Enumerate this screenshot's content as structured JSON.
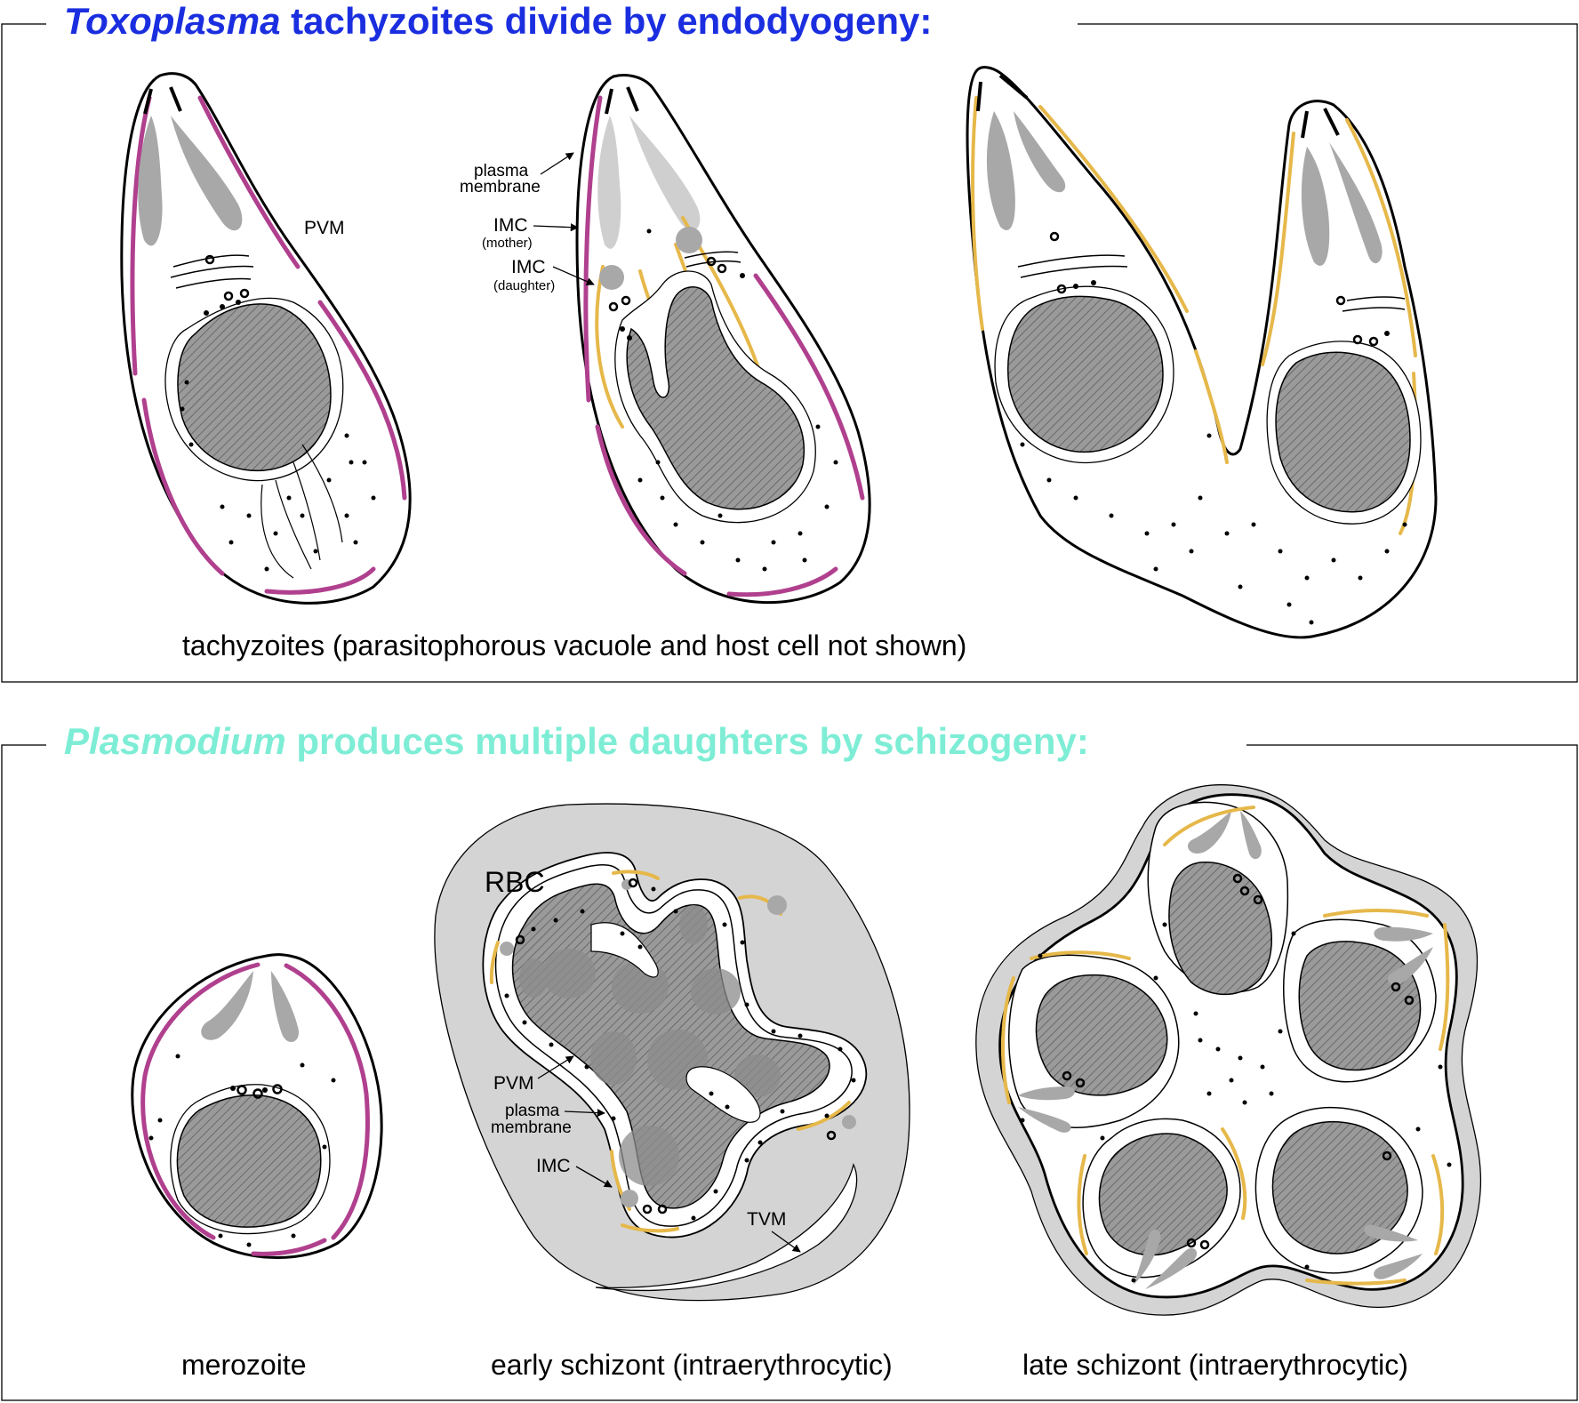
{
  "colors": {
    "toxo_heading": "#1a2ee0",
    "plasmo_heading": "#7eedd5",
    "imc_mother": "#b0408e",
    "imc_daughter": "#e6b84a",
    "rbc_fill": "#d4d4d4",
    "rhoptry": "#a8a8a8",
    "nucleus": "#9a9a9a"
  },
  "toxoplasma_panel": {
    "title_italic": "Toxoplasma",
    "title_rest": " tachyzoites divide by endodyogeny:",
    "caption": "tachyzoites (parasitophorous vacuole and host cell not shown)",
    "labels": {
      "pvm": "PVM",
      "plasma_membrane_1": "plasma",
      "plasma_membrane_2": "membrane",
      "imc_mother_1": "IMC",
      "imc_mother_2": "(mother)",
      "imc_daughter_1": "IMC",
      "imc_daughter_2": "(daughter)"
    }
  },
  "plasmodium_panel": {
    "title_italic": "Plasmodium",
    "title_rest": " produces multiple daughters by schizogeny:",
    "captions": {
      "merozoite": "merozoite",
      "early_schizont": "early schizont (intraerythrocytic)",
      "late_schizont": "late schizont (intraerythrocytic)"
    },
    "labels": {
      "rbc": "RBC",
      "pvm": "PVM",
      "plasma_membrane_1": "plasma",
      "plasma_membrane_2": "membrane",
      "imc": "IMC",
      "tvm": "TVM"
    }
  }
}
